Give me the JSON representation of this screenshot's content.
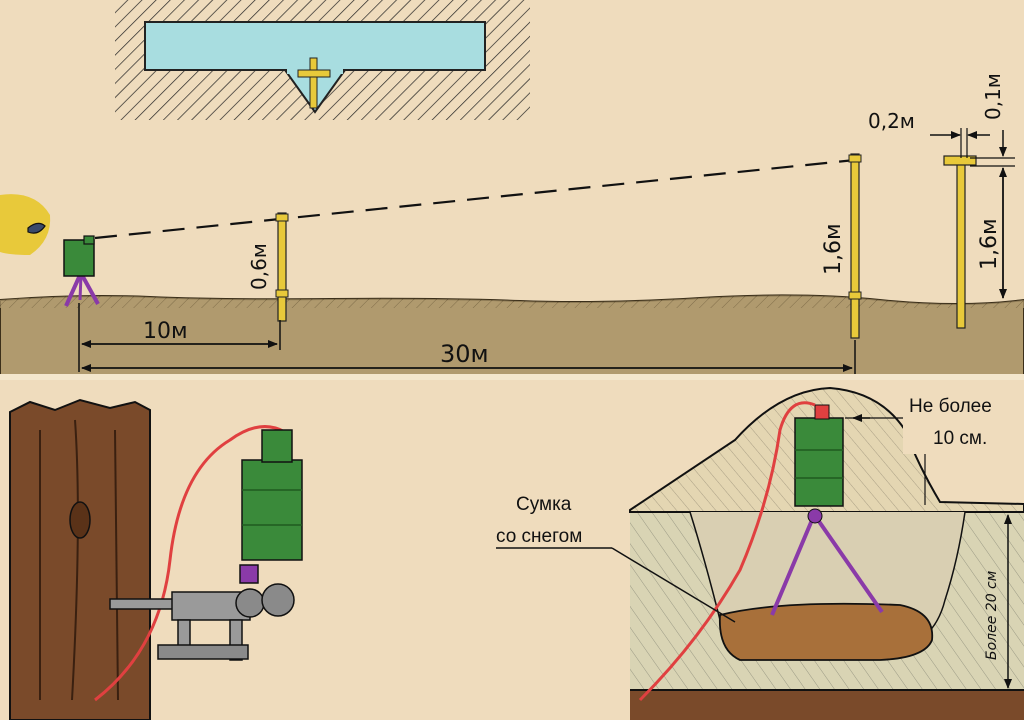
{
  "top_panel": {
    "dist_10": "10м",
    "dist_30": "30м",
    "height_06": "0,6м",
    "height_16_a": "1,6м",
    "height_16_b": "1,6м",
    "offset_02": "0,2м",
    "offset_01": "0,1м"
  },
  "bottom_right": {
    "label_line1": "Не более",
    "label_line2": "10 см.",
    "bag_line1": "Сумка",
    "bag_line2": "со снегом",
    "depth": "Более 20 см"
  },
  "colors": {
    "background": "#efdcbd",
    "ground": "#b09a6e",
    "stake": "#e8c93a",
    "device": "#3a8a3a",
    "tripod": "#8a3aa8",
    "wire": "#e04040",
    "sign_box": "#a8dde0",
    "bark": "#7a4a2a",
    "snow_bag": "#a8703a",
    "bottom_ground": "#7a4a2a"
  },
  "icons": [
    "cross-icon",
    "eye-icon",
    "sensor-device-icon",
    "tripod-icon",
    "clamp-icon"
  ]
}
